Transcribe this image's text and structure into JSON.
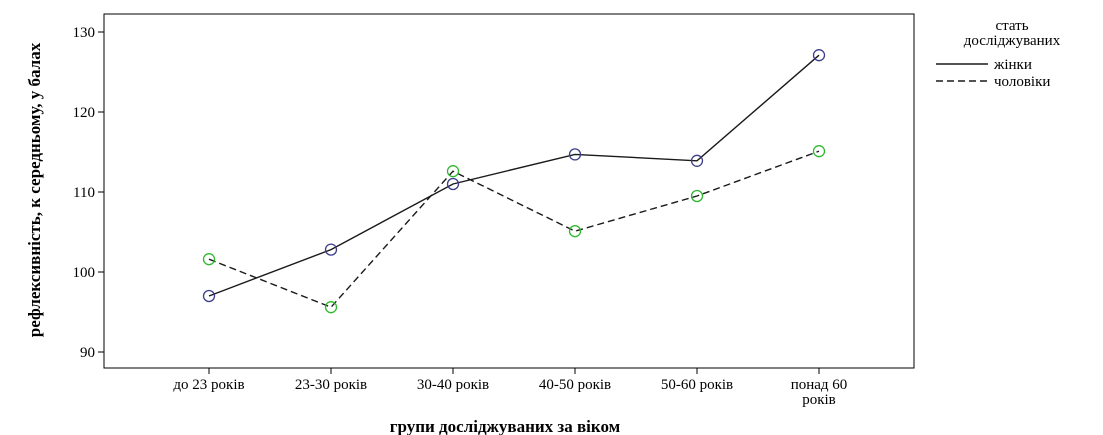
{
  "chart_data": {
    "type": "line",
    "title": "",
    "xlabel": "групи досліджуваних за віком",
    "ylabel": "рефлексивність, к середньому, у балах",
    "categories": [
      "до 23 років",
      "23-30 років",
      "30-40 років",
      "40-50 років",
      "50-60 років",
      "понад 60 років"
    ],
    "yticks": [
      90,
      100,
      110,
      120,
      130
    ],
    "ylim": [
      88,
      132
    ],
    "grid": false,
    "legend_position": "right",
    "legend_title": "стать досліджуваних",
    "series": [
      {
        "name": "жінки",
        "values": [
          97.0,
          102.8,
          111.0,
          114.7,
          113.9,
          127.1
        ],
        "color": "#1a1a1a",
        "marker_color": "#3d3d8a",
        "dash": "solid"
      },
      {
        "name": "чоловіки",
        "values": [
          101.6,
          95.6,
          112.6,
          105.1,
          109.5,
          115.1
        ],
        "color": "#1a1a1a",
        "marker_color": "#2eb82e",
        "dash": "dashed"
      }
    ]
  }
}
